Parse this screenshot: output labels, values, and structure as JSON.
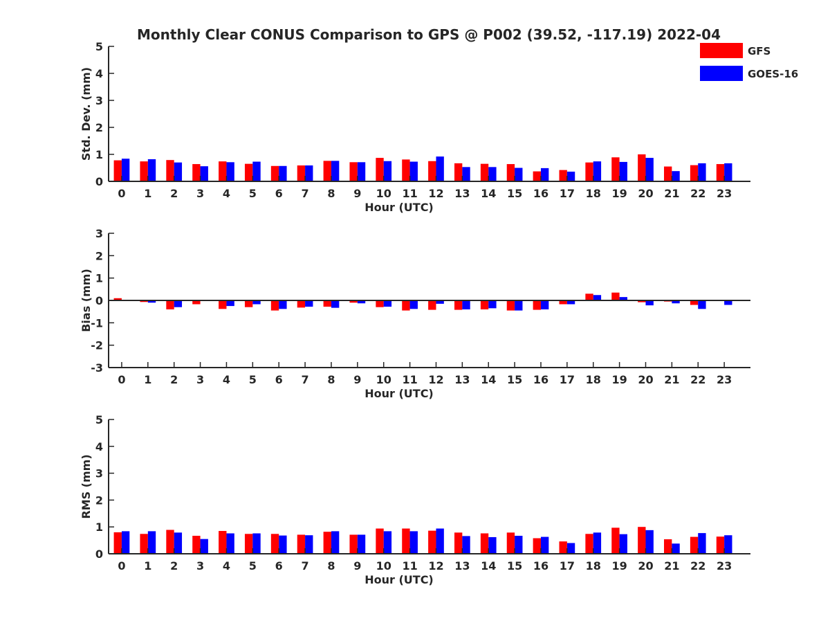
{
  "title": "Monthly Clear CONUS Comparison to GPS @ P002 (39.52, -117.19) 2022-04",
  "colors": {
    "GFS": "#ff0000",
    "GOES-16": "#0000ff",
    "axis": "#262626"
  },
  "chart_data": [
    {
      "type": "bar",
      "panel": "std",
      "xlabel": "Hour (UTC)",
      "ylabel": "Std. Dev. (mm)",
      "ylim": [
        0,
        5
      ],
      "yticks": [
        0,
        1,
        2,
        3,
        4,
        5
      ],
      "categories": [
        "0",
        "1",
        "2",
        "3",
        "4",
        "5",
        "6",
        "7",
        "8",
        "9",
        "10",
        "11",
        "12",
        "13",
        "14",
        "15",
        "16",
        "17",
        "18",
        "19",
        "20",
        "21",
        "22",
        "23"
      ],
      "legend": "top-right",
      "series": [
        {
          "name": "GFS",
          "color": "#ff0000",
          "values": [
            0.78,
            0.74,
            0.79,
            0.64,
            0.74,
            0.65,
            0.57,
            0.59,
            0.76,
            0.71,
            0.87,
            0.81,
            0.75,
            0.67,
            0.65,
            0.64,
            0.37,
            0.42,
            0.7,
            0.89,
            1.0,
            0.55,
            0.6,
            0.64
          ]
        },
        {
          "name": "GOES-16",
          "color": "#0000ff",
          "values": [
            0.84,
            0.82,
            0.7,
            0.56,
            0.71,
            0.73,
            0.57,
            0.59,
            0.76,
            0.71,
            0.75,
            0.73,
            0.92,
            0.53,
            0.53,
            0.5,
            0.49,
            0.36,
            0.74,
            0.72,
            0.87,
            0.38,
            0.67,
            0.67
          ]
        }
      ]
    },
    {
      "type": "bar",
      "panel": "bias",
      "xlabel": "Hour (UTC)",
      "ylabel": "Bias (mm)",
      "ylim": [
        -3,
        3
      ],
      "yticks": [
        -3,
        -2,
        -1,
        0,
        1,
        2,
        3
      ],
      "categories": [
        "0",
        "1",
        "2",
        "3",
        "4",
        "5",
        "6",
        "7",
        "8",
        "9",
        "10",
        "11",
        "12",
        "13",
        "14",
        "15",
        "16",
        "17",
        "18",
        "19",
        "20",
        "21",
        "22",
        "23"
      ],
      "series": [
        {
          "name": "GFS",
          "color": "#ff0000",
          "values": [
            0.1,
            -0.07,
            -0.4,
            -0.17,
            -0.38,
            -0.3,
            -0.45,
            -0.32,
            -0.28,
            -0.1,
            -0.3,
            -0.45,
            -0.42,
            -0.42,
            -0.4,
            -0.45,
            -0.42,
            -0.17,
            0.3,
            0.35,
            -0.08,
            -0.05,
            -0.2,
            0.0
          ]
        },
        {
          "name": "GOES-16",
          "color": "#0000ff",
          "values": [
            0.0,
            -0.1,
            -0.3,
            0.0,
            -0.25,
            -0.17,
            -0.38,
            -0.28,
            -0.33,
            -0.13,
            -0.28,
            -0.38,
            -0.15,
            -0.4,
            -0.35,
            -0.45,
            -0.4,
            -0.17,
            0.24,
            0.15,
            -0.22,
            -0.13,
            -0.38,
            -0.2
          ]
        }
      ]
    },
    {
      "type": "bar",
      "panel": "rms",
      "xlabel": "Hour (UTC)",
      "ylabel": "RMS (mm)",
      "ylim": [
        0,
        5
      ],
      "yticks": [
        0,
        1,
        2,
        3,
        4,
        5
      ],
      "categories": [
        "0",
        "1",
        "2",
        "3",
        "4",
        "5",
        "6",
        "7",
        "8",
        "9",
        "10",
        "11",
        "12",
        "13",
        "14",
        "15",
        "16",
        "17",
        "18",
        "19",
        "20",
        "21",
        "22",
        "23"
      ],
      "series": [
        {
          "name": "GFS",
          "color": "#ff0000",
          "values": [
            0.8,
            0.74,
            0.89,
            0.67,
            0.85,
            0.74,
            0.74,
            0.71,
            0.82,
            0.71,
            0.94,
            0.94,
            0.86,
            0.79,
            0.76,
            0.79,
            0.58,
            0.46,
            0.74,
            0.97,
            1.0,
            0.54,
            0.63,
            0.64
          ]
        },
        {
          "name": "GOES-16",
          "color": "#0000ff",
          "values": [
            0.84,
            0.84,
            0.79,
            0.55,
            0.76,
            0.76,
            0.68,
            0.69,
            0.84,
            0.71,
            0.84,
            0.84,
            0.94,
            0.66,
            0.62,
            0.67,
            0.63,
            0.4,
            0.79,
            0.73,
            0.88,
            0.38,
            0.77,
            0.69
          ]
        }
      ]
    }
  ]
}
